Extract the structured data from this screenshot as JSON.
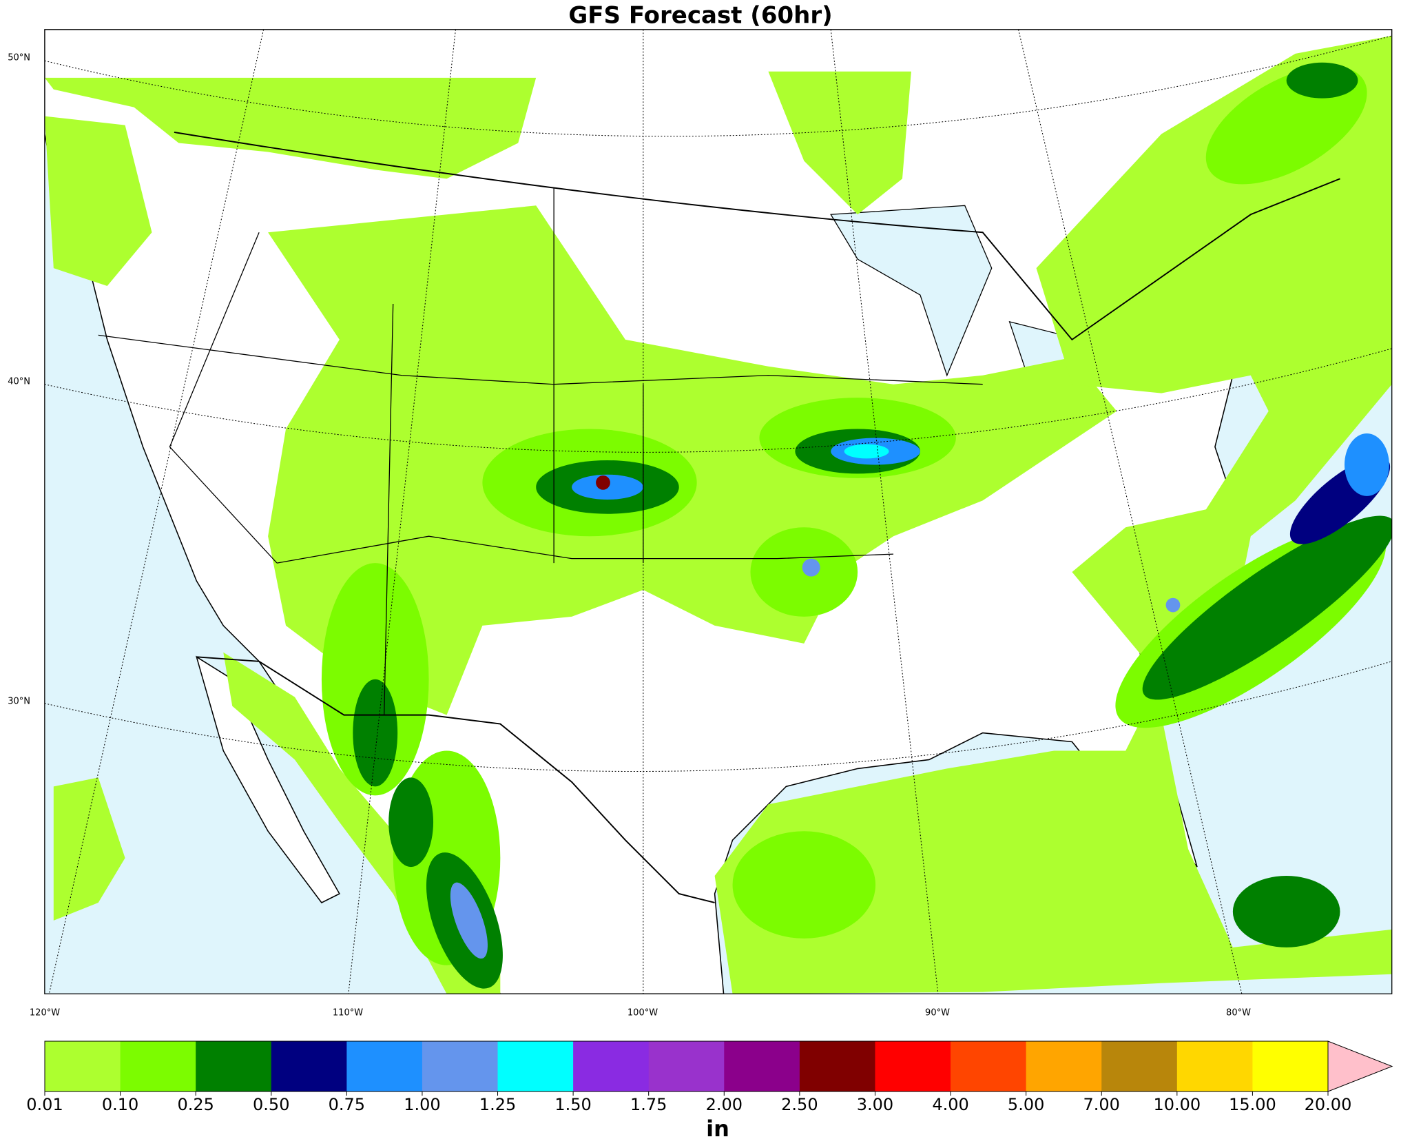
{
  "title": "GFS Forecast (60hr)",
  "map": {
    "lat_labels": [
      "50°N",
      "40°N",
      "30°N"
    ],
    "lon_labels": [
      "120°W",
      "110°W",
      "100°W",
      "90°W",
      "80°W"
    ]
  },
  "colorbar": {
    "levels": [
      {
        "value": 0.01,
        "label": "0.01"
      },
      {
        "value": 0.1,
        "label": "0.10"
      },
      {
        "value": 0.25,
        "label": "0.25"
      },
      {
        "value": 0.5,
        "label": "0.50"
      },
      {
        "value": 0.75,
        "label": "0.75"
      },
      {
        "value": 1,
        "label": "1.00"
      },
      {
        "value": 1.25,
        "label": "1.25"
      },
      {
        "value": 1.5,
        "label": "1.50"
      },
      {
        "value": 1.75,
        "label": "1.75"
      },
      {
        "value": 2,
        "label": "2.00"
      },
      {
        "value": 2.5,
        "label": "2.50"
      },
      {
        "value": 3,
        "label": "3.00"
      },
      {
        "value": 4,
        "label": "4.00"
      },
      {
        "value": 5,
        "label": "5.00"
      },
      {
        "value": 7,
        "label": "7.00"
      },
      {
        "value": 10,
        "label": "10.00"
      },
      {
        "value": 15,
        "label": "15.00"
      },
      {
        "value": 20,
        "label": "20.00"
      }
    ],
    "colors": [
      "#adff2f",
      "#7cfc00",
      "#008000",
      "#000080",
      "#1e90ff",
      "#6495ed",
      "#00ffff",
      "#8a2be2",
      "#9932cc",
      "#8b008b",
      "#800000",
      "#ff0000",
      "#ff4500",
      "#ffa500",
      "#b8860b",
      "#ffd700",
      "#ffff00"
    ],
    "extend_color": "#ffc0cb",
    "unit": "in"
  }
}
